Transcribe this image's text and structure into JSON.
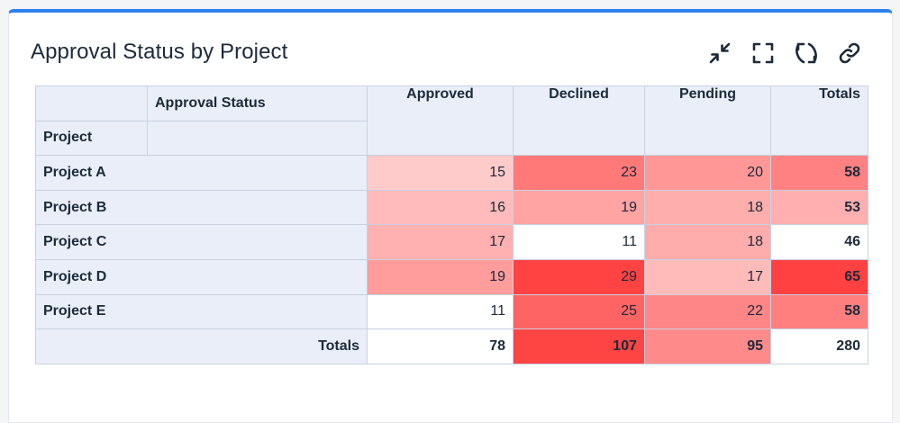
{
  "widget": {
    "title": "Approval Status by Project"
  },
  "toolbar": {
    "icons": [
      "collapse-icon",
      "fullscreen-icon",
      "refresh-icon",
      "link-icon"
    ]
  },
  "pivot": {
    "column_dim_label": "Approval Status",
    "row_dim_label": "Project",
    "columns": [
      "Approved",
      "Declined",
      "Pending",
      "Totals"
    ],
    "rows": [
      {
        "label": "Project A",
        "values": [
          "15",
          "23",
          "20"
        ],
        "total": "58",
        "colors": [
          "#ffcaca",
          "#ff7979",
          "#ff9797"
        ],
        "total_color": "#ff8181"
      },
      {
        "label": "Project B",
        "values": [
          "16",
          "19",
          "18"
        ],
        "total": "53",
        "colors": [
          "#ffbbbb",
          "#ffa3a3",
          "#ffaeae"
        ],
        "total_color": "#ffafaf"
      },
      {
        "label": "Project C",
        "values": [
          "17",
          "11",
          "18"
        ],
        "total": "46",
        "colors": [
          "#ffb0b0",
          "#ffffff",
          "#ffacac"
        ],
        "total_color": "#ffffff"
      },
      {
        "label": "Project D",
        "values": [
          "19",
          "29",
          "17"
        ],
        "total": "65",
        "colors": [
          "#ff9c9c",
          "#ff4242",
          "#ffbaba"
        ],
        "total_color": "#ff4141"
      },
      {
        "label": "Project E",
        "values": [
          "11",
          "25",
          "22"
        ],
        "total": "58",
        "colors": [
          "#ffffff",
          "#ff6464",
          "#ff8686"
        ],
        "total_color": "#ff7e7e"
      }
    ],
    "totals": {
      "label": "Totals",
      "values": [
        "78",
        "107",
        "95"
      ],
      "grand": "280",
      "colors": [
        "#ffffff",
        "#ff4444",
        "#ff8a8a"
      ],
      "grand_color": "#ffffff"
    }
  }
}
